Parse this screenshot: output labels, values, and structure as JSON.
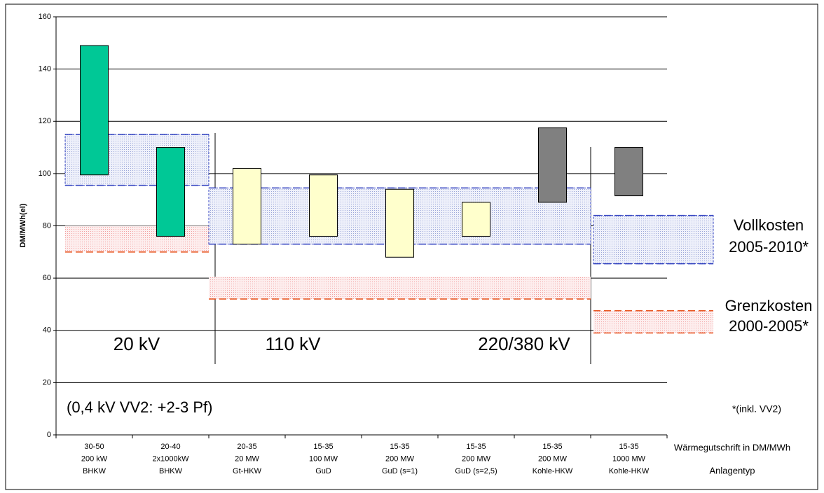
{
  "chart_data": {
    "type": "floating_bar",
    "y_label": "DM/MWh(el)",
    "x_label_top": "Wärmegutschrift in DM/MWh",
    "x_label_bottom": "Anlagentyp",
    "categories": [
      [
        "30-50",
        "200 kW",
        "BHKW"
      ],
      [
        "20-40",
        "2x1000kW",
        "BHKW"
      ],
      [
        "20-35",
        "20 MW",
        "Gt-HKW"
      ],
      [
        "15-35",
        "100 MW",
        "GuD"
      ],
      [
        "15-35",
        "200 MW",
        "GuD (s=1)"
      ],
      [
        "15-35",
        "200 MW",
        "GuD (s=2,5)"
      ],
      [
        "15-35",
        "200 MW",
        "Kohle-HKW"
      ],
      [
        "15-35",
        "1000 MW",
        "Kohle-HKW"
      ]
    ],
    "low": [
      99.5,
      76,
      73,
      76,
      68,
      76,
      89,
      91.5
    ],
    "high": [
      149,
      110,
      102,
      99.5,
      94,
      89,
      117.5,
      110
    ],
    "colors": [
      "#00c896",
      "#00c896",
      "#ffffcc",
      "#ffffcc",
      "#ffffcc",
      "#ffffcc",
      "#808080",
      "#808080"
    ],
    "ylim": [
      0,
      160
    ],
    "yticks": [
      0,
      20,
      40,
      60,
      80,
      100,
      120,
      140,
      160
    ],
    "grid": true,
    "full_cost_bands": [
      {
        "start": 0,
        "end": 1,
        "low": 95.5,
        "high": 115
      },
      {
        "start": 2,
        "end": 6,
        "low": 73,
        "high": 94.5
      },
      {
        "start": 7,
        "end": 7,
        "low": 65.5,
        "high": 84
      }
    ],
    "marginal_cost_bands": [
      {
        "start": 0,
        "end": 1,
        "low": 70,
        "high": 80
      },
      {
        "start": 2,
        "end": 6,
        "low": 52,
        "high": 60.5
      },
      {
        "start": 7,
        "end": 7,
        "low": 39,
        "high": 47.5
      }
    ],
    "full_cost_label": [
      "Vollkosten",
      "2005-2010*"
    ],
    "marginal_cost_label": [
      "Grenzkosten",
      "2000-2005*"
    ],
    "footnote": "*(inkl. VV2)",
    "voltage_labels": [
      "20 kV",
      "110 kV",
      "220/380 kV"
    ],
    "note": "(0,4 kV VV2: +2-3 Pf)"
  }
}
